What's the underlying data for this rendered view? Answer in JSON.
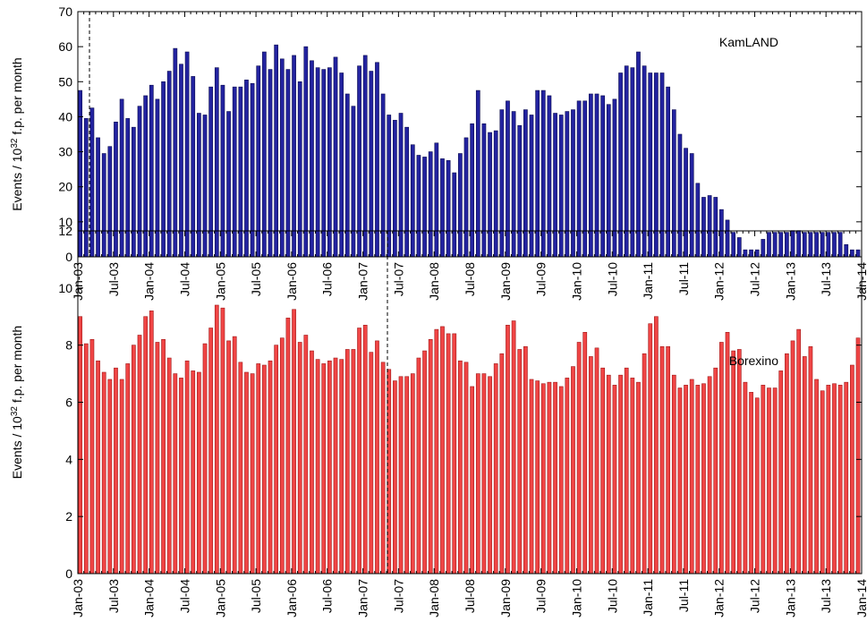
{
  "chart_data": [
    {
      "type": "bar",
      "ylabel": [
        "Events / 10",
        "32",
        " f.p. per month"
      ],
      "categories": [
        "Jan-03",
        null,
        null,
        null,
        null,
        null,
        "Jul-03",
        null,
        null,
        null,
        null,
        null,
        "Jan-04",
        null,
        null,
        null,
        null,
        null,
        "Jul-04",
        null,
        null,
        null,
        null,
        null,
        "Jan-05",
        null,
        null,
        null,
        null,
        null,
        "Jul-05",
        null,
        null,
        null,
        null,
        null,
        "Jan-06",
        null,
        null,
        null,
        null,
        null,
        "Jul-06",
        null,
        null,
        null,
        null,
        null,
        "Jan-07",
        null,
        null,
        null,
        null,
        null,
        "Jul-07",
        null,
        null,
        null,
        null,
        null,
        "Jan-08",
        null,
        null,
        null,
        null,
        null,
        "Jul-08",
        null,
        null,
        null,
        null,
        null,
        "Jan-09",
        null,
        null,
        null,
        null,
        null,
        "Jul-09",
        null,
        null,
        null,
        null,
        null,
        "Jan-10",
        null,
        null,
        null,
        null,
        null,
        "Jul-10",
        null,
        null,
        null,
        null,
        null,
        "Jan-11",
        null,
        null,
        null,
        null,
        null,
        "Jul-11",
        null,
        null,
        null,
        null,
        null,
        "Jan-12",
        null,
        null,
        null,
        null,
        null,
        "Jul-12",
        null,
        null,
        null,
        null,
        null,
        "Jan-13",
        null,
        null,
        null,
        null,
        null,
        "Jul-13",
        null,
        null,
        null,
        null,
        null,
        "Jan-14"
      ],
      "series": [
        {
          "name": "KamLAND",
          "color": "#2323a0",
          "edge": "#0a0a50",
          "values": [
            47.5,
            39.5,
            42.5,
            34,
            29.5,
            31.5,
            38.5,
            45,
            39.5,
            37,
            43,
            46,
            49,
            45,
            50,
            53,
            59.5,
            55,
            58.5,
            51.5,
            41,
            40.5,
            48.5,
            54,
            49,
            41.5,
            48.5,
            48.5,
            50.5,
            49.5,
            54.5,
            58.5,
            53.5,
            60.5,
            56.5,
            53.5,
            57.5,
            50,
            60,
            56,
            54,
            53.5,
            54,
            57,
            52.5,
            46.5,
            43,
            54.5,
            57.5,
            53,
            55.5,
            46.5,
            40.5,
            39,
            41,
            37,
            32,
            29,
            28.5,
            30,
            32.5,
            28,
            27.5,
            24,
            29.5,
            34,
            38,
            47.5,
            38,
            35.5,
            36,
            42,
            44.5,
            41.5,
            37.5,
            42,
            40.5,
            47.5,
            47.5,
            46,
            41,
            40.5,
            41.5,
            42,
            44.5,
            44.5,
            46.5,
            46.5,
            46,
            43.5,
            45,
            52.5,
            54.5,
            54,
            58.5,
            54.5,
            52.5,
            52.5,
            52.5,
            48.5,
            42,
            35,
            31,
            29.5,
            21,
            17,
            17.5,
            17,
            13.5,
            10.5,
            7,
            5.5,
            2,
            2,
            2,
            5,
            7,
            7,
            7,
            7,
            7.5,
            7.5,
            7,
            7,
            7,
            7,
            7,
            7,
            7,
            3.5,
            2,
            2,
            null
          ]
        }
      ],
      "ylim": [
        0,
        70
      ],
      "yticks": [
        0,
        10,
        20,
        30,
        40,
        50,
        60,
        70
      ]
    },
    {
      "type": "bar",
      "ylabel": [
        "Events / 10",
        "32",
        " f.p. per month"
      ],
      "categories": [
        "Jan-03",
        null,
        null,
        null,
        null,
        null,
        "Jul-03",
        null,
        null,
        null,
        null,
        null,
        "Jan-04",
        null,
        null,
        null,
        null,
        null,
        "Jul-04",
        null,
        null,
        null,
        null,
        null,
        "Jan-05",
        null,
        null,
        null,
        null,
        null,
        "Jul-05",
        null,
        null,
        null,
        null,
        null,
        "Jan-06",
        null,
        null,
        null,
        null,
        null,
        "Jul-06",
        null,
        null,
        null,
        null,
        null,
        "Jan-07",
        null,
        null,
        null,
        null,
        null,
        "Jul-07",
        null,
        null,
        null,
        null,
        null,
        "Jan-08",
        null,
        null,
        null,
        null,
        null,
        "Jul-08",
        null,
        null,
        null,
        null,
        null,
        "Jan-09",
        null,
        null,
        null,
        null,
        null,
        "Jul-09",
        null,
        null,
        null,
        null,
        null,
        "Jan-10",
        null,
        null,
        null,
        null,
        null,
        "Jul-10",
        null,
        null,
        null,
        null,
        null,
        "Jan-11",
        null,
        null,
        null,
        null,
        null,
        "Jul-11",
        null,
        null,
        null,
        null,
        null,
        "Jan-12",
        null,
        null,
        null,
        null,
        null,
        "Jul-12",
        null,
        null,
        null,
        null,
        null,
        "Jan-13",
        null,
        null,
        null,
        null,
        null,
        "Jul-13",
        null,
        null,
        null,
        null,
        null,
        "Jan-14"
      ],
      "series": [
        {
          "name": "Borexino",
          "color": "#f04545",
          "edge": "#a01818",
          "values": [
            9.0,
            8.05,
            8.2,
            7.45,
            7.05,
            6.8,
            7.2,
            6.8,
            7.35,
            8.0,
            8.35,
            9.0,
            9.2,
            8.1,
            8.2,
            7.55,
            7.0,
            6.85,
            7.45,
            7.1,
            7.05,
            8.05,
            8.6,
            9.4,
            9.3,
            8.15,
            8.3,
            7.4,
            7.05,
            7.0,
            7.35,
            7.3,
            7.45,
            8.0,
            8.25,
            8.95,
            9.25,
            8.1,
            8.35,
            7.8,
            7.5,
            7.35,
            7.45,
            7.55,
            7.5,
            7.85,
            7.85,
            8.6,
            8.7,
            7.75,
            8.15,
            7.4,
            7.15,
            6.75,
            6.9,
            6.9,
            7.0,
            7.55,
            7.8,
            8.2,
            8.55,
            8.65,
            8.4,
            8.4,
            7.45,
            7.4,
            6.55,
            7.0,
            7.0,
            6.9,
            7.35,
            7.7,
            8.7,
            8.85,
            7.85,
            7.95,
            6.8,
            6.75,
            6.65,
            6.7,
            6.7,
            6.55,
            6.85,
            7.25,
            8.1,
            8.45,
            7.6,
            7.9,
            7.2,
            6.95,
            6.6,
            6.95,
            7.2,
            6.85,
            6.7,
            7.7,
            8.75,
            9.0,
            7.95,
            7.95,
            6.95,
            6.5,
            6.6,
            6.8,
            6.6,
            6.65,
            6.9,
            7.2,
            8.1,
            8.45,
            7.8,
            7.85,
            6.7,
            6.35,
            6.15,
            6.6,
            6.5,
            6.5,
            7.1,
            7.7,
            8.15,
            8.55,
            7.6,
            7.95,
            6.8,
            6.4,
            6.6,
            6.65,
            6.6,
            6.7,
            7.3,
            8.25,
            null
          ]
        }
      ],
      "ylim": [
        0,
        12
      ],
      "yticks": [
        0,
        2,
        4,
        6,
        8,
        10,
        12
      ]
    }
  ]
}
